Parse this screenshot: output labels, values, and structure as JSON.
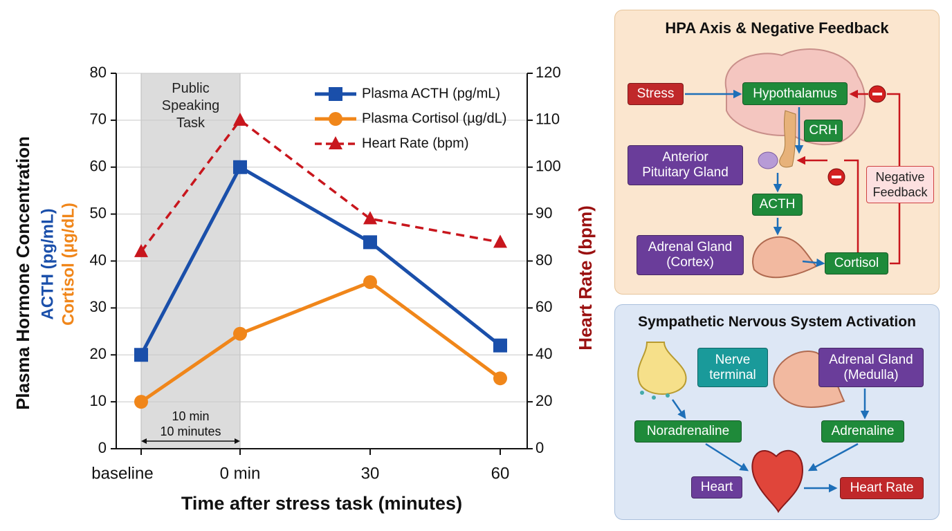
{
  "chart_data": {
    "type": "line",
    "categories": [
      "baseline",
      "0 min",
      "30",
      "60"
    ],
    "series": [
      {
        "name": "Plasma ACTH (pg/mL)",
        "color": "#1a4faa",
        "marker": "square",
        "values": [
          20,
          60,
          44,
          22
        ]
      },
      {
        "name": "Plasma Cortisol (µg/dL)",
        "color": "#f0861a",
        "marker": "circle",
        "values": [
          10,
          24.5,
          35.5,
          15
        ]
      },
      {
        "name": "Heart Rate (bpm)",
        "color": "#c8161d",
        "marker": "triangle",
        "dashed": true,
        "axis": "y2",
        "values": [
          82,
          110,
          89,
          84
        ]
      }
    ],
    "ylim": [
      0,
      80
    ],
    "yticks": [
      0,
      10,
      20,
      30,
      40,
      50,
      60,
      70,
      80
    ],
    "y2lim": [
      0,
      120
    ],
    "y2ticks": [
      0,
      20,
      40,
      60,
      80,
      90,
      100,
      110,
      120
    ],
    "grid": true,
    "legend": "upper right",
    "xlabel": "Time after stress task (minutes)",
    "ylabel": "Plasma Hormone Concentration",
    "ylabel_parts": [
      "ACTH (pg/mL)",
      "Cortisol (µg/dL)"
    ],
    "y2label": "Heart Rate (bpm)",
    "shaded_label": "Public Speaking Task",
    "duration_labels": [
      "10 min",
      "10 minutes"
    ]
  },
  "diagram": {
    "hpa": {
      "title": "HPA Axis & Negative Feedback",
      "nodes": [
        "Stress",
        "Hypothalamus",
        "CRH",
        "Anterior Pituitary Gland",
        "ACTH",
        "Adrenal Gland (Cortex)",
        "Cortisol",
        "Negative Feedback"
      ]
    },
    "sns": {
      "title": "Sympathetic Nervous System Activation",
      "nodes": [
        "Nerve terminal",
        "Adrenal Gland (Medulla)",
        "Noradrenaline",
        "Adrenaline",
        "Heart",
        "Heart Rate"
      ]
    }
  }
}
